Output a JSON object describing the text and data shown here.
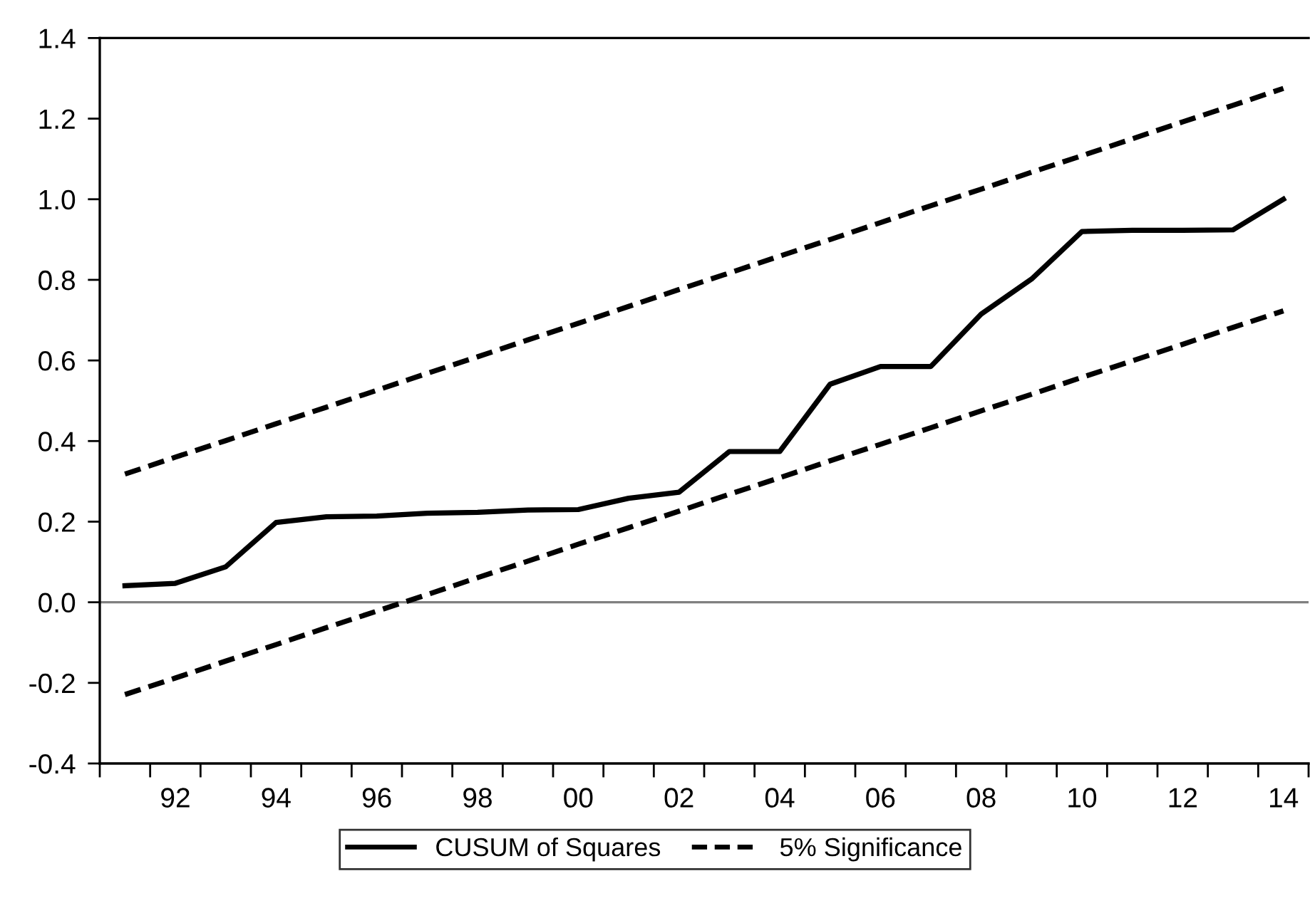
{
  "chart_data": {
    "type": "line",
    "categories": [
      null,
      "92",
      null,
      "94",
      null,
      "96",
      null,
      "98",
      null,
      "00",
      null,
      "02",
      null,
      "04",
      null,
      "06",
      null,
      "08",
      null,
      "10",
      null,
      "12",
      null,
      "14"
    ],
    "series": [
      {
        "name": "CUSUM of Squares",
        "color": "#000000",
        "line_style": "solid",
        "values": [
          0.041,
          0.047,
          0.088,
          0.198,
          0.212,
          0.214,
          0.221,
          0.223,
          0.229,
          0.23,
          0.258,
          0.273,
          0.374,
          0.374,
          0.541,
          0.585,
          0.585,
          0.715,
          0.802,
          0.92,
          0.923,
          0.923,
          0.924,
          1.0
        ]
      },
      {
        "name": "5% Significance",
        "color": "#000000",
        "line_style": "dashed",
        "values": [
          0.318,
          0.36,
          0.401,
          0.443,
          0.484,
          0.526,
          0.568,
          0.609,
          0.651,
          0.692,
          0.734,
          0.776,
          0.817,
          0.859,
          0.9,
          0.942,
          0.984,
          1.025,
          1.067,
          1.108,
          1.15,
          1.192,
          1.233,
          1.275
        ]
      },
      {
        "color": "#000000",
        "line_style": "dashed",
        "values": [
          -0.229,
          -0.188,
          -0.146,
          -0.105,
          -0.063,
          -0.022,
          0.019,
          0.061,
          0.102,
          0.144,
          0.185,
          0.226,
          0.268,
          0.309,
          0.351,
          0.392,
          0.433,
          0.475,
          0.516,
          0.558,
          0.599,
          0.64,
          0.682,
          0.723
        ]
      }
    ],
    "ylim": [
      -0.4,
      1.4
    ],
    "yticks": [
      -0.4,
      -0.2,
      {
        "value": 0,
        "label": "0.0"
      },
      0.2,
      0.4,
      0.6,
      0.8,
      {
        "value": 1,
        "label": "1.0"
      },
      1.2,
      1.4
    ],
    "ref_lines": [
      {
        "axis": "y",
        "value": 0,
        "color": "#808080"
      }
    ],
    "legend": "bottom",
    "grid": false,
    "marker": "none"
  }
}
